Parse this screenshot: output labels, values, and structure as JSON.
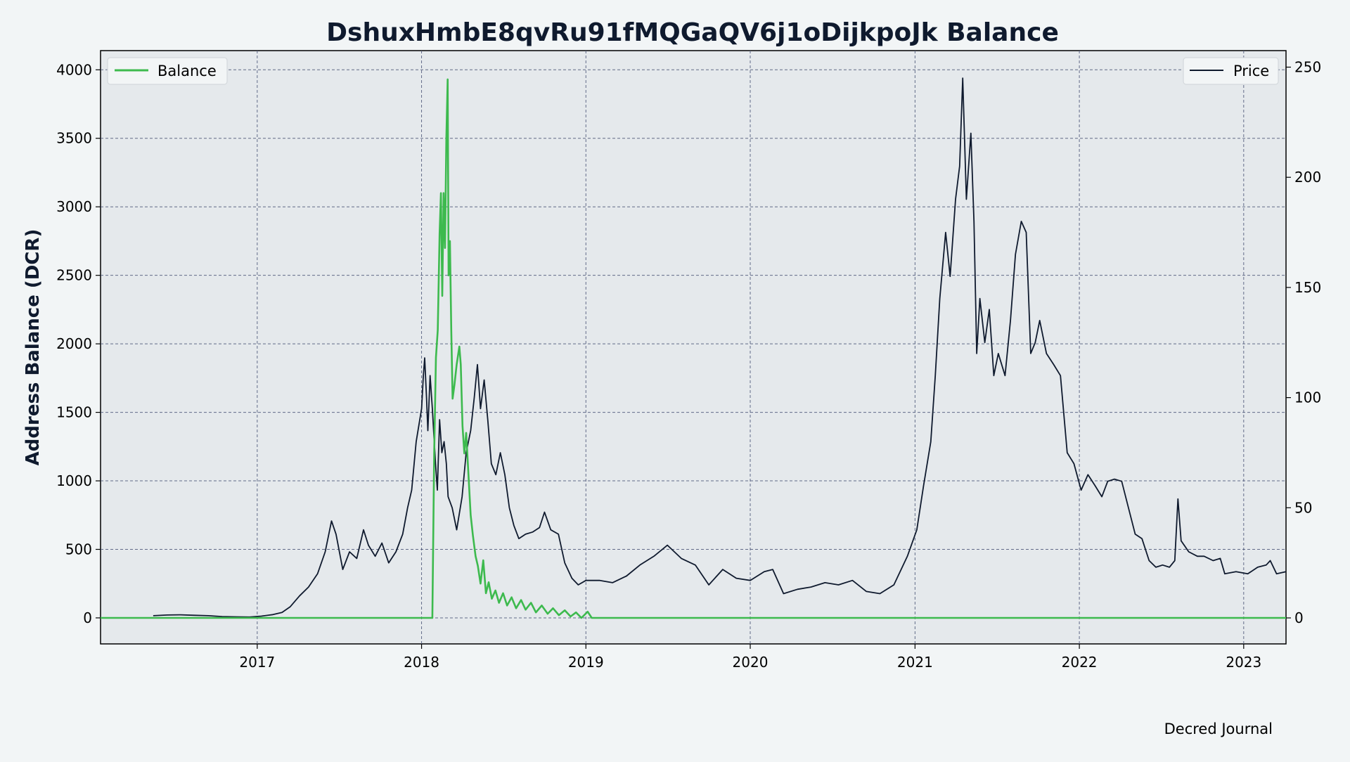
{
  "chart_data": {
    "type": "line",
    "title": "DshuxHmbE8qvRu91fMQGaQV6j1oDijkpoJk Balance",
    "ylabel": "Address Balance (DCR)",
    "ylabel_right": "",
    "xlabel": "",
    "credit": "Decred Journal",
    "grid": true,
    "x_range": [
      "2016-01-19",
      "2023-04-05"
    ],
    "ylim": [
      -190,
      4140
    ],
    "ylim_right": [
      -11.8,
      257.5
    ],
    "x_ticks": [
      "2017",
      "2018",
      "2019",
      "2020",
      "2021",
      "2022",
      "2023"
    ],
    "y_ticks": [
      0,
      500,
      1000,
      1500,
      2000,
      2500,
      3000,
      3500,
      4000
    ],
    "y_ticks_right": [
      0,
      50,
      100,
      150,
      200,
      250
    ],
    "legend_left": {
      "placement": "top-left",
      "label": "Balance"
    },
    "legend_right": {
      "placement": "top-right",
      "label": "Price"
    },
    "colors": {
      "balance": "#3dba4e",
      "price": "#0f1a2e",
      "plot_bg": "#e5e9ec",
      "page_bg": "#f2f5f6"
    },
    "series": [
      {
        "name": "Balance",
        "axis": "left",
        "points": [
          [
            "2016-01-19",
            0
          ],
          [
            "2018-01-25",
            0
          ],
          [
            "2018-01-29",
            1200
          ],
          [
            "2018-02-02",
            1900
          ],
          [
            "2018-02-06",
            2100
          ],
          [
            "2018-02-10",
            2800
          ],
          [
            "2018-02-13",
            3100
          ],
          [
            "2018-02-16",
            2350
          ],
          [
            "2018-02-19",
            3100
          ],
          [
            "2018-02-22",
            2700
          ],
          [
            "2018-02-25",
            3500
          ],
          [
            "2018-02-28",
            3930
          ],
          [
            "2018-03-02",
            2500
          ],
          [
            "2018-03-05",
            2750
          ],
          [
            "2018-03-08",
            2100
          ],
          [
            "2018-03-11",
            1600
          ],
          [
            "2018-03-15",
            1700
          ],
          [
            "2018-03-20",
            1850
          ],
          [
            "2018-03-26",
            1980
          ],
          [
            "2018-03-29",
            1850
          ],
          [
            "2018-04-02",
            1400
          ],
          [
            "2018-04-06",
            1200
          ],
          [
            "2018-04-10",
            1350
          ],
          [
            "2018-04-15",
            1050
          ],
          [
            "2018-04-20",
            750
          ],
          [
            "2018-04-25",
            600
          ],
          [
            "2018-05-01",
            450
          ],
          [
            "2018-05-06",
            380
          ],
          [
            "2018-05-12",
            250
          ],
          [
            "2018-05-18",
            420
          ],
          [
            "2018-05-24",
            180
          ],
          [
            "2018-05-30",
            260
          ],
          [
            "2018-06-06",
            140
          ],
          [
            "2018-06-14",
            200
          ],
          [
            "2018-06-22",
            110
          ],
          [
            "2018-07-01",
            180
          ],
          [
            "2018-07-10",
            90
          ],
          [
            "2018-07-20",
            150
          ],
          [
            "2018-07-30",
            70
          ],
          [
            "2018-08-10",
            130
          ],
          [
            "2018-08-20",
            60
          ],
          [
            "2018-09-01",
            110
          ],
          [
            "2018-09-12",
            40
          ],
          [
            "2018-09-25",
            90
          ],
          [
            "2018-10-08",
            30
          ],
          [
            "2018-10-20",
            70
          ],
          [
            "2018-11-02",
            20
          ],
          [
            "2018-11-15",
            55
          ],
          [
            "2018-11-28",
            10
          ],
          [
            "2018-12-10",
            40
          ],
          [
            "2018-12-22",
            0
          ],
          [
            "2019-01-05",
            45
          ],
          [
            "2019-01-14",
            0
          ],
          [
            "2023-04-05",
            0
          ]
        ]
      },
      {
        "name": "Price",
        "axis": "right",
        "points": [
          [
            "2016-05-15",
            1.0
          ],
          [
            "2016-06-15",
            1.3
          ],
          [
            "2016-07-15",
            1.4
          ],
          [
            "2016-08-15",
            1.2
          ],
          [
            "2016-09-15",
            1.0
          ],
          [
            "2016-10-15",
            0.6
          ],
          [
            "2016-11-15",
            0.5
          ],
          [
            "2016-12-15",
            0.4
          ],
          [
            "2017-01-10",
            0.8
          ],
          [
            "2017-02-05",
            1.5
          ],
          [
            "2017-02-25",
            2.5
          ],
          [
            "2017-03-15",
            5.0
          ],
          [
            "2017-04-05",
            10.0
          ],
          [
            "2017-04-25",
            14.0
          ],
          [
            "2017-05-15",
            20.0
          ],
          [
            "2017-06-01",
            30.0
          ],
          [
            "2017-06-15",
            44.0
          ],
          [
            "2017-06-25",
            38.0
          ],
          [
            "2017-07-10",
            22.0
          ],
          [
            "2017-07-25",
            30.0
          ],
          [
            "2017-08-10",
            27.0
          ],
          [
            "2017-08-25",
            40.0
          ],
          [
            "2017-09-05",
            33.0
          ],
          [
            "2017-09-20",
            28.0
          ],
          [
            "2017-10-05",
            34.0
          ],
          [
            "2017-10-20",
            25.0
          ],
          [
            "2017-11-05",
            30.0
          ],
          [
            "2017-11-20",
            38.0
          ],
          [
            "2017-12-01",
            50.0
          ],
          [
            "2017-12-10",
            58.0
          ],
          [
            "2017-12-20",
            80.0
          ],
          [
            "2018-01-01",
            95.0
          ],
          [
            "2018-01-05",
            110.0
          ],
          [
            "2018-01-08",
            118.0
          ],
          [
            "2018-01-12",
            100.0
          ],
          [
            "2018-01-15",
            85.0
          ],
          [
            "2018-01-20",
            110.0
          ],
          [
            "2018-01-25",
            95.0
          ],
          [
            "2018-02-01",
            70.0
          ],
          [
            "2018-02-05",
            58.0
          ],
          [
            "2018-02-10",
            90.0
          ],
          [
            "2018-02-15",
            75.0
          ],
          [
            "2018-02-20",
            80.0
          ],
          [
            "2018-02-25",
            70.0
          ],
          [
            "2018-03-01",
            55.0
          ],
          [
            "2018-03-10",
            50.0
          ],
          [
            "2018-03-20",
            40.0
          ],
          [
            "2018-04-01",
            55.0
          ],
          [
            "2018-04-10",
            75.0
          ],
          [
            "2018-04-20",
            85.0
          ],
          [
            "2018-04-28",
            100.0
          ],
          [
            "2018-05-05",
            115.0
          ],
          [
            "2018-05-12",
            95.0
          ],
          [
            "2018-05-20",
            108.0
          ],
          [
            "2018-05-28",
            90.0
          ],
          [
            "2018-06-05",
            70.0
          ],
          [
            "2018-06-15",
            65.0
          ],
          [
            "2018-06-25",
            75.0
          ],
          [
            "2018-07-05",
            65.0
          ],
          [
            "2018-07-15",
            50.0
          ],
          [
            "2018-07-25",
            42.0
          ],
          [
            "2018-08-05",
            36.0
          ],
          [
            "2018-08-20",
            38.0
          ],
          [
            "2018-09-05",
            39.0
          ],
          [
            "2018-09-20",
            41.0
          ],
          [
            "2018-10-01",
            48.0
          ],
          [
            "2018-10-15",
            40.0
          ],
          [
            "2018-11-01",
            38.0
          ],
          [
            "2018-11-15",
            25.0
          ],
          [
            "2018-12-01",
            18.0
          ],
          [
            "2018-12-15",
            15.0
          ],
          [
            "2019-01-01",
            17.0
          ],
          [
            "2019-02-01",
            17.0
          ],
          [
            "2019-03-01",
            16.0
          ],
          [
            "2019-04-01",
            19.0
          ],
          [
            "2019-05-01",
            24.0
          ],
          [
            "2019-06-01",
            28.0
          ],
          [
            "2019-07-01",
            33.0
          ],
          [
            "2019-08-01",
            27.0
          ],
          [
            "2019-09-01",
            24.0
          ],
          [
            "2019-10-01",
            15.0
          ],
          [
            "2019-11-01",
            22.0
          ],
          [
            "2019-12-01",
            18.0
          ],
          [
            "2020-01-01",
            17.0
          ],
          [
            "2020-02-01",
            21.0
          ],
          [
            "2020-02-20",
            22.0
          ],
          [
            "2020-03-15",
            11.0
          ],
          [
            "2020-04-15",
            13.0
          ],
          [
            "2020-05-15",
            14.0
          ],
          [
            "2020-06-15",
            16.0
          ],
          [
            "2020-07-15",
            15.0
          ],
          [
            "2020-08-15",
            17.0
          ],
          [
            "2020-09-15",
            12.0
          ],
          [
            "2020-10-15",
            11.0
          ],
          [
            "2020-11-15",
            15.0
          ],
          [
            "2020-12-15",
            28.0
          ],
          [
            "2021-01-05",
            40.0
          ],
          [
            "2021-01-20",
            60.0
          ],
          [
            "2021-02-05",
            80.0
          ],
          [
            "2021-02-15",
            110.0
          ],
          [
            "2021-02-25",
            145.0
          ],
          [
            "2021-03-10",
            175.0
          ],
          [
            "2021-03-20",
            155.0
          ],
          [
            "2021-04-01",
            190.0
          ],
          [
            "2021-04-10",
            205.0
          ],
          [
            "2021-04-17",
            245.0
          ],
          [
            "2021-04-25",
            190.0
          ],
          [
            "2021-05-05",
            220.0
          ],
          [
            "2021-05-12",
            180.0
          ],
          [
            "2021-05-18",
            120.0
          ],
          [
            "2021-05-25",
            145.0
          ],
          [
            "2021-06-05",
            125.0
          ],
          [
            "2021-06-15",
            140.0
          ],
          [
            "2021-06-25",
            110.0
          ],
          [
            "2021-07-05",
            120.0
          ],
          [
            "2021-07-20",
            110.0
          ],
          [
            "2021-08-01",
            135.0
          ],
          [
            "2021-08-12",
            165.0
          ],
          [
            "2021-08-25",
            180.0
          ],
          [
            "2021-09-05",
            175.0
          ],
          [
            "2021-09-15",
            120.0
          ],
          [
            "2021-09-25",
            125.0
          ],
          [
            "2021-10-05",
            135.0
          ],
          [
            "2021-10-20",
            120.0
          ],
          [
            "2021-11-05",
            115.0
          ],
          [
            "2021-11-20",
            110.0
          ],
          [
            "2021-12-05",
            75.0
          ],
          [
            "2021-12-20",
            70.0
          ],
          [
            "2022-01-05",
            58.0
          ],
          [
            "2022-01-20",
            65.0
          ],
          [
            "2022-02-05",
            60.0
          ],
          [
            "2022-02-20",
            55.0
          ],
          [
            "2022-03-05",
            62.0
          ],
          [
            "2022-03-20",
            63.0
          ],
          [
            "2022-04-05",
            62.0
          ],
          [
            "2022-04-20",
            50.0
          ],
          [
            "2022-05-05",
            38.0
          ],
          [
            "2022-05-20",
            36.0
          ],
          [
            "2022-06-05",
            26.0
          ],
          [
            "2022-06-20",
            23.0
          ],
          [
            "2022-07-05",
            24.0
          ],
          [
            "2022-07-20",
            23.0
          ],
          [
            "2022-08-01",
            26.0
          ],
          [
            "2022-08-08",
            54.0
          ],
          [
            "2022-08-15",
            35.0
          ],
          [
            "2022-09-01",
            30.0
          ],
          [
            "2022-09-20",
            28.0
          ],
          [
            "2022-10-05",
            28.0
          ],
          [
            "2022-10-25",
            26.0
          ],
          [
            "2022-11-10",
            27.0
          ],
          [
            "2022-11-20",
            20.0
          ],
          [
            "2022-12-15",
            21.0
          ],
          [
            "2023-01-10",
            20.0
          ],
          [
            "2023-02-01",
            23.0
          ],
          [
            "2023-02-20",
            24.0
          ],
          [
            "2023-03-01",
            26.0
          ],
          [
            "2023-03-15",
            20.0
          ],
          [
            "2023-04-05",
            21.0
          ]
        ]
      }
    ]
  }
}
